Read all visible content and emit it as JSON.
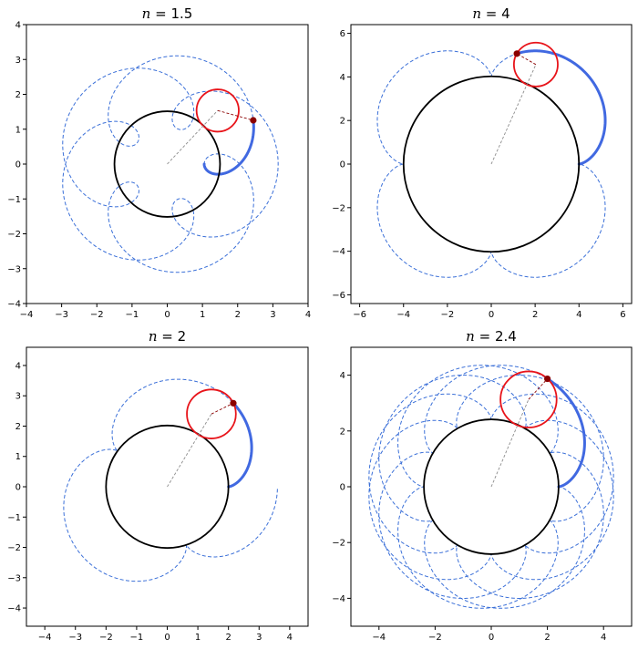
{
  "chart_data": [
    {
      "type": "line",
      "title": "n = 1.5",
      "title_var": "n",
      "title_value": "1.5",
      "R": 1.5,
      "r": 0.6,
      "d": 1.05,
      "rotations": 2,
      "pen_angle_deg": 47,
      "xlim": [
        -4,
        4
      ],
      "ylim": [
        -4,
        4
      ],
      "xticks": [
        "−4",
        "−3",
        "−2",
        "−1",
        "0",
        "1",
        "2",
        "3",
        "4"
      ],
      "yticks": [
        "−4",
        "−3",
        "−2",
        "−1",
        "0",
        "1",
        "2",
        "3",
        "4"
      ],
      "xtick_values": [
        -4,
        -3,
        -2,
        -1,
        0,
        1,
        2,
        3,
        4
      ],
      "ytick_values": [
        -4,
        -3,
        -2,
        -1,
        0,
        1,
        2,
        3,
        4
      ],
      "colors": {
        "trace": "#4169e1",
        "dashed": "#3a6fd8",
        "fixed": "#000000",
        "rolling": "#e8141a",
        "pen": "#8b0000"
      }
    },
    {
      "type": "line",
      "title": "n = 4",
      "title_var": "n",
      "title_value": "4",
      "R": 4,
      "r": 1.0,
      "d": 1.0,
      "rotations": 1,
      "pen_angle_deg": 66,
      "xlim": [
        -6.4,
        6.4
      ],
      "ylim": [
        -6.4,
        6.4
      ],
      "xticks": [
        "−6",
        "−4",
        "−2",
        "0",
        "2",
        "4",
        "6"
      ],
      "yticks": [
        "−6",
        "−4",
        "−2",
        "0",
        "2",
        "4",
        "6"
      ],
      "xtick_values": [
        -6,
        -4,
        -2,
        0,
        2,
        4,
        6
      ],
      "ytick_values": [
        -6,
        -4,
        -2,
        0,
        2,
        4,
        6
      ],
      "colors": {
        "trace": "#4169e1",
        "dashed": "#3a6fd8",
        "fixed": "#000000",
        "rolling": "#e8141a",
        "pen": "#8b0000"
      }
    },
    {
      "type": "line",
      "title": "n = 2",
      "title_var": "n",
      "title_value": "2",
      "R": 2,
      "r": 0.8,
      "d": 0.8,
      "rotations": 1,
      "pen_angle_deg": 59,
      "xlim": [
        -4.6,
        4.6
      ],
      "ylim": [
        -4.6,
        4.6
      ],
      "xticks": [
        "−4",
        "−3",
        "−2",
        "−1",
        "0",
        "1",
        "2",
        "3",
        "4"
      ],
      "yticks": [
        "−4",
        "−3",
        "−2",
        "−1",
        "0",
        "1",
        "2",
        "3",
        "4"
      ],
      "xtick_values": [
        -4,
        -3,
        -2,
        -1,
        0,
        1,
        2,
        3,
        4
      ],
      "ytick_values": [
        -4,
        -3,
        -2,
        -1,
        0,
        1,
        2,
        3,
        4
      ],
      "colors": {
        "trace": "#4169e1",
        "dashed": "#3a6fd8",
        "fixed": "#000000",
        "rolling": "#e8141a",
        "pen": "#8b0000"
      }
    },
    {
      "type": "line",
      "title": "n = 2.4",
      "title_var": "n",
      "title_value": "2.4",
      "R": 2.4,
      "r": 1.0,
      "d": 1.0,
      "rotations": 5,
      "pen_angle_deg": 67,
      "xlim": [
        -5,
        5
      ],
      "ylim": [
        -5,
        5
      ],
      "xticks": [
        "−4",
        "−2",
        "0",
        "2",
        "4"
      ],
      "yticks": [
        "−4",
        "−2",
        "0",
        "2",
        "4"
      ],
      "xtick_values": [
        -4,
        -2,
        0,
        2,
        4
      ],
      "ytick_values": [
        -4,
        -2,
        0,
        2,
        4
      ],
      "colors": {
        "trace": "#4169e1",
        "dashed": "#3a6fd8",
        "fixed": "#000000",
        "rolling": "#e8141a",
        "pen": "#8b0000"
      }
    }
  ]
}
